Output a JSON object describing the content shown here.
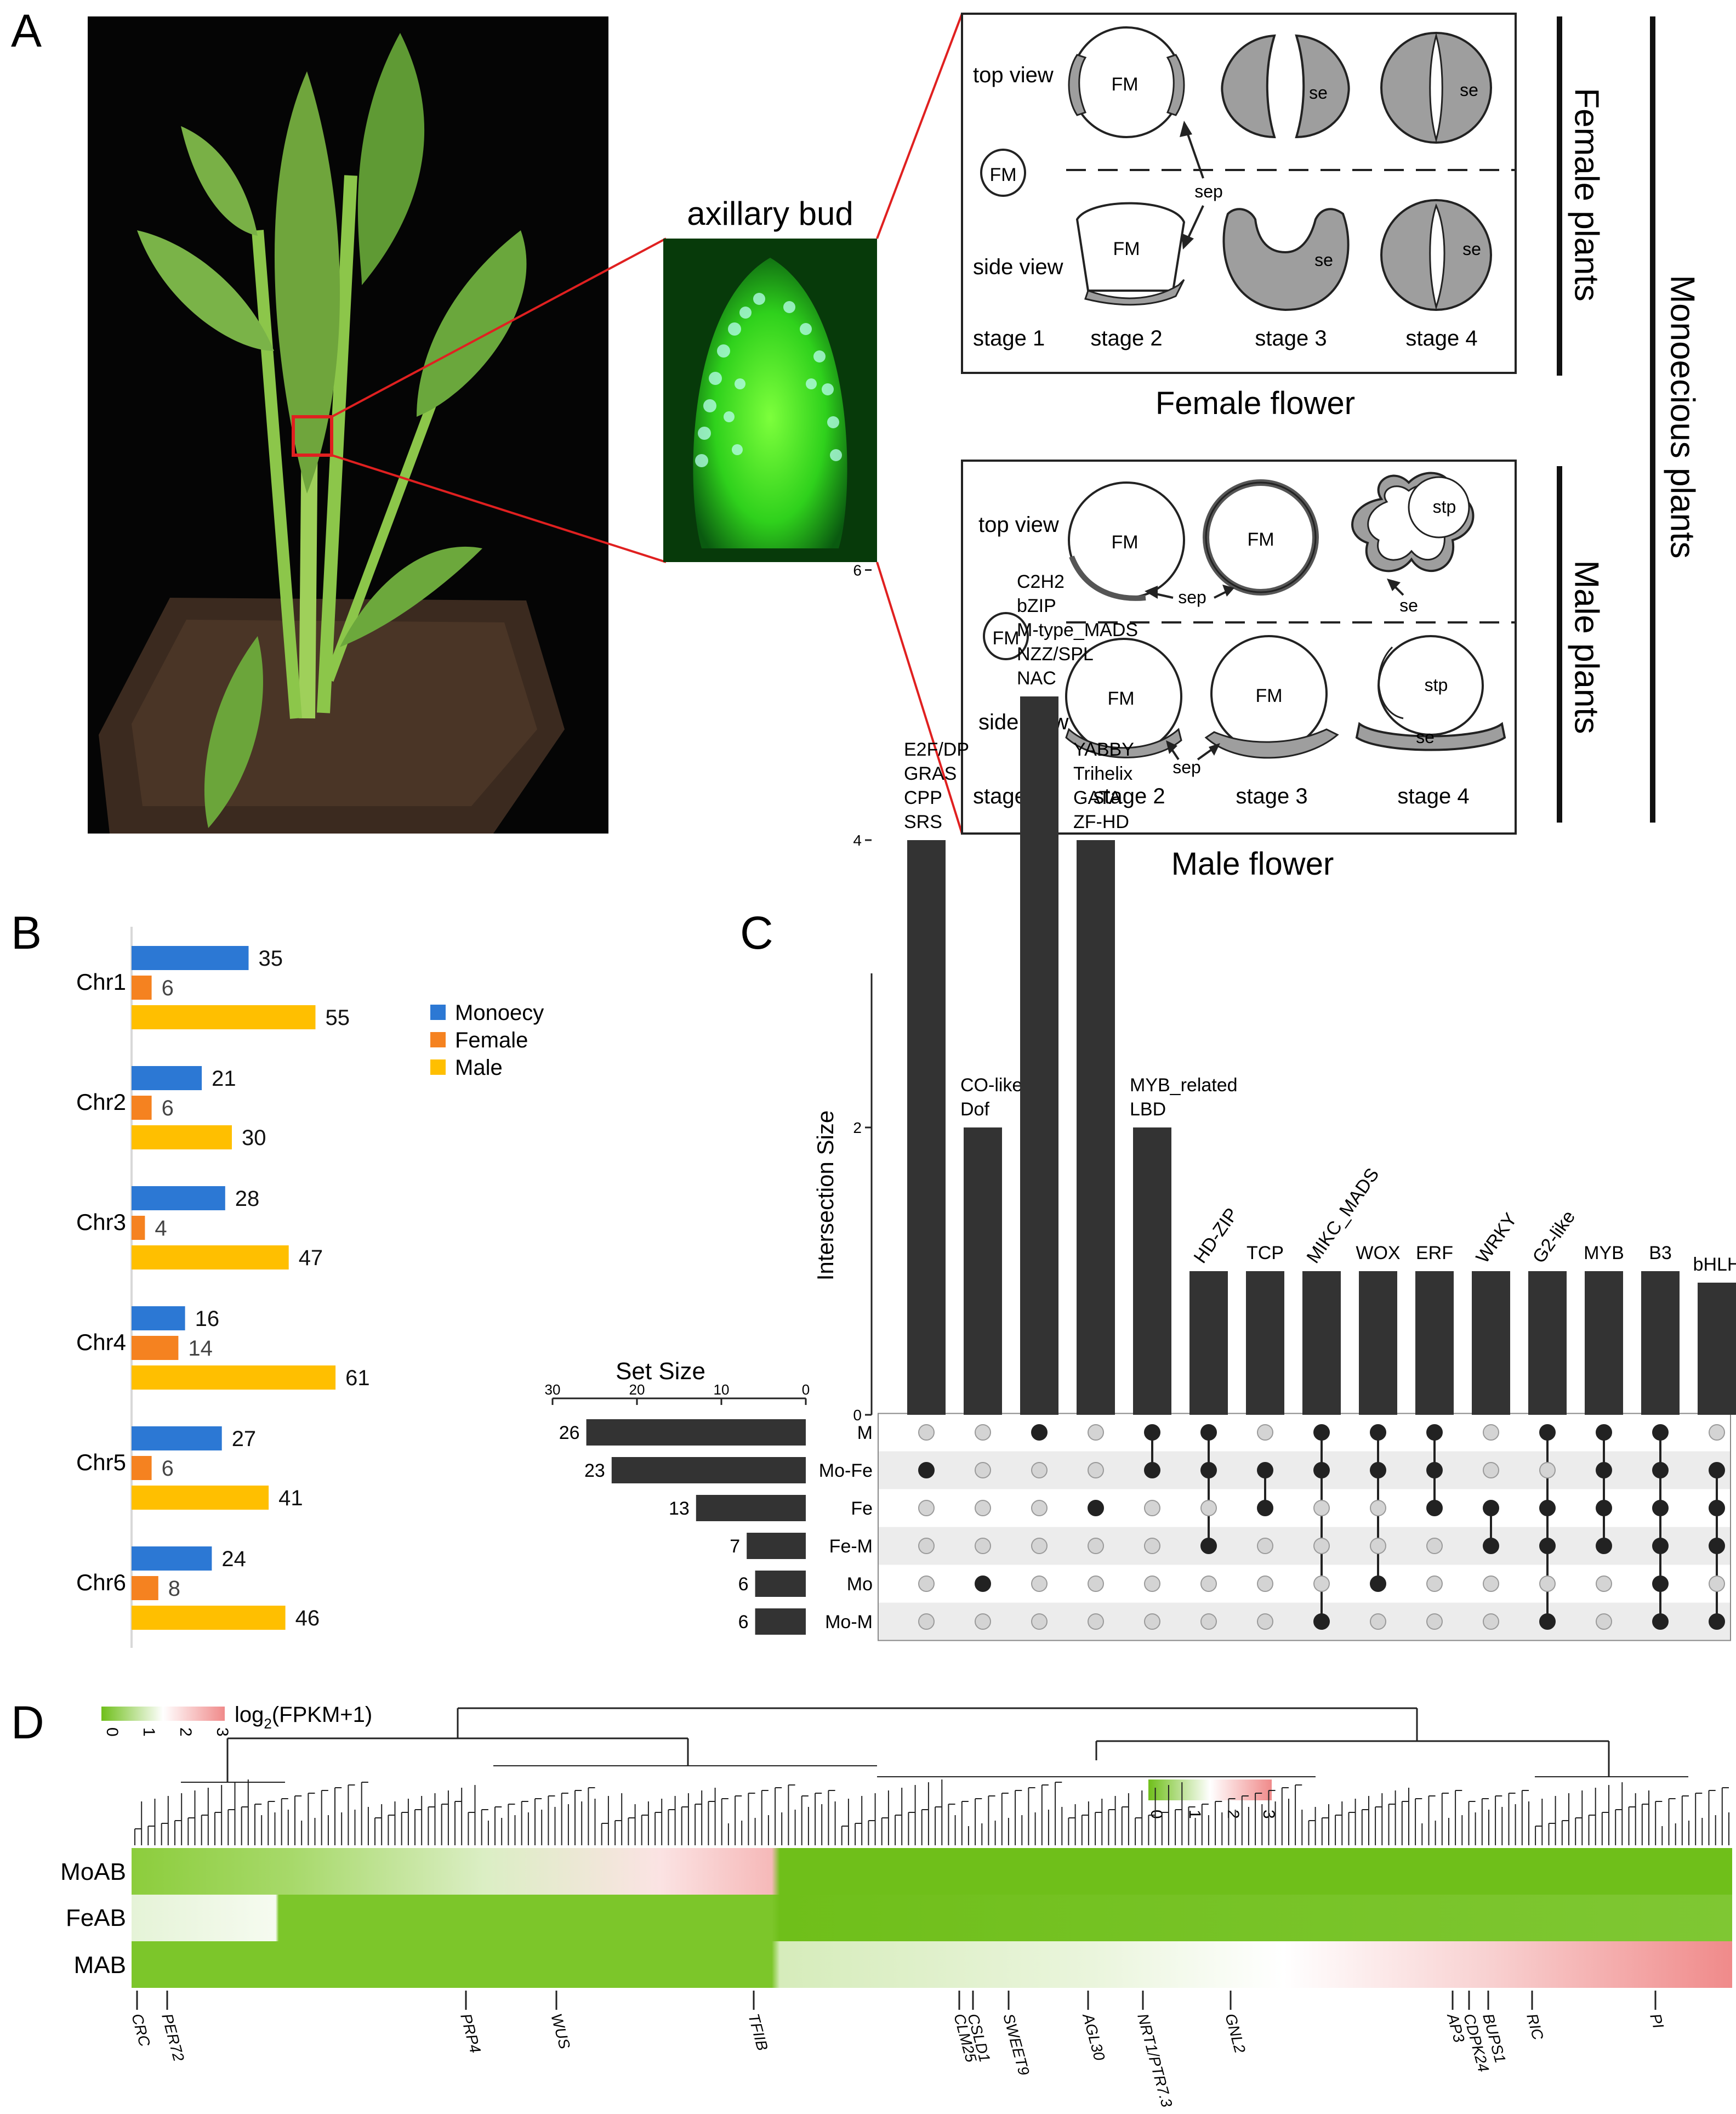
{
  "panel_labels": {
    "a": "A",
    "b": "B",
    "c": "C",
    "d": "D"
  },
  "panel_a": {
    "bud_title": "axillary bud",
    "female_caption": "Female flower",
    "male_caption": "Male flower",
    "female_plants": "Female plants",
    "male_plants": "Male plants",
    "monoecious_plants": "Monoecious plants",
    "top_view": "top view",
    "side_view": "side view",
    "fm": "FM",
    "sep": "sep",
    "se": "se",
    "stp": "stp",
    "stages": [
      "stage 1",
      "stage 2",
      "stage 3",
      "stage 4"
    ]
  },
  "chart_data": [
    {
      "type": "bar",
      "orientation": "horizontal",
      "categories": [
        "Chr1",
        "Chr2",
        "Chr3",
        "Chr4",
        "Chr5",
        "Chr6"
      ],
      "series": [
        {
          "name": "Monoecy",
          "color": "#2c78d4",
          "values": [
            35,
            21,
            28,
            16,
            27,
            24
          ]
        },
        {
          "name": "Female",
          "color": "#f58220",
          "values": [
            6,
            6,
            4,
            14,
            6,
            8
          ]
        },
        {
          "name": "Male",
          "color": "#ffbf00",
          "values": [
            55,
            30,
            47,
            61,
            41,
            46
          ]
        }
      ],
      "legend": "top-right"
    },
    {
      "type": "bar",
      "subtype": "upset",
      "ylabel": "Intersection Size",
      "yticks": [
        0,
        2,
        4,
        6
      ],
      "ylim": [
        0,
        6
      ],
      "set_size_title": "Set Size",
      "set_size_ticks": [
        30,
        20,
        10,
        0
      ],
      "sets": [
        "M",
        "Mo-Fe",
        "Fe",
        "Fe-M",
        "Mo",
        "Mo-M"
      ],
      "set_sizes": [
        26,
        23,
        13,
        7,
        6,
        6
      ],
      "intersections": [
        {
          "size": 4,
          "labels": [
            "E2F/DP",
            "GRAS",
            "CPP",
            "SRS"
          ],
          "members": [
            "Mo-Fe"
          ]
        },
        {
          "size": 2,
          "labels": [
            "CO-like",
            "Dof"
          ],
          "members": [
            "Mo"
          ]
        },
        {
          "size": 5,
          "labels": [
            "C2H2",
            "bZIP",
            "M-type_MADS",
            "NZZ/SPL",
            "NAC"
          ],
          "members": [
            "M"
          ]
        },
        {
          "size": 4,
          "labels": [
            "YABBY",
            "Trihelix",
            "GATA",
            "ZF-HD"
          ],
          "members": [
            "Fe"
          ]
        },
        {
          "size": 2,
          "labels": [
            "MYB_related",
            "LBD"
          ],
          "members": [
            "M",
            "Mo-Fe"
          ]
        },
        {
          "size": 1,
          "labels": [
            "HD-ZIP"
          ],
          "members": [
            "M",
            "Mo-Fe",
            "Fe-M"
          ]
        },
        {
          "size": 1,
          "labels": [
            "TCP"
          ],
          "members": [
            "Mo-Fe",
            "Fe"
          ]
        },
        {
          "size": 1,
          "labels": [
            "MIKC_MADS"
          ],
          "members": [
            "M",
            "Mo-Fe",
            "Mo-M"
          ]
        },
        {
          "size": 1,
          "labels": [
            "WOX"
          ],
          "members": [
            "M",
            "Mo-Fe",
            "Mo"
          ]
        },
        {
          "size": 1,
          "labels": [
            "ERF"
          ],
          "members": [
            "M",
            "Mo-Fe",
            "Fe"
          ]
        },
        {
          "size": 1,
          "labels": [
            "WRKY"
          ],
          "members": [
            "Fe",
            "Fe-M"
          ]
        },
        {
          "size": 1,
          "labels": [
            "G2-like"
          ],
          "members": [
            "M",
            "Fe",
            "Fe-M",
            "Mo-M"
          ]
        },
        {
          "size": 1,
          "labels": [
            "MYB"
          ],
          "members": [
            "M",
            "Mo-Fe",
            "Fe",
            "Fe-M"
          ]
        },
        {
          "size": 1,
          "labels": [
            "B3"
          ],
          "members": [
            "M",
            "Mo-Fe",
            "Fe",
            "Fe-M",
            "Mo",
            "Mo-M"
          ]
        },
        {
          "size": 1,
          "labels": [
            "bHLH"
          ],
          "members": [
            "Mo-Fe",
            "Fe",
            "Fe-M",
            "Mo-M"
          ]
        }
      ]
    },
    {
      "type": "heatmap",
      "rows": [
        "MoAB",
        "FeAB",
        "MAB"
      ],
      "colorbar_label": "log",
      "colorbar_sub": "2",
      "colorbar_suffix": "(FPKM+1)",
      "colorbar_ticks": [
        "0",
        "1",
        "2",
        "3"
      ],
      "color_low": "#6fbf1a",
      "color_mid": "#ffffff",
      "color_high": "#f08a8a",
      "genes": [
        "CRC",
        "PER72",
        "PRP4",
        "WUS",
        "TFIIB",
        "CLM25",
        "CSLD1",
        "SWEET9",
        "AGL30",
        "NRT1/PTR7.3",
        "GNL2",
        "AP3",
        "CDPK24",
        "BUPS1",
        "RIC",
        "PI"
      ]
    }
  ]
}
